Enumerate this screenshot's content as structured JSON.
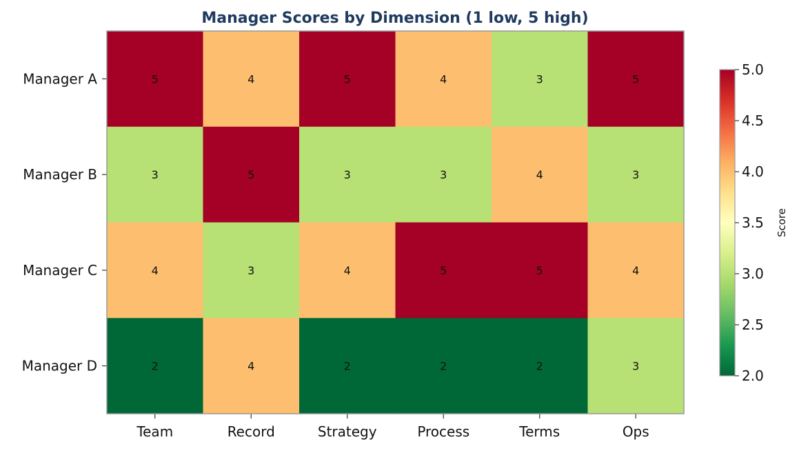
{
  "chart_data": {
    "type": "heatmap",
    "title": "Manager Scores by Dimension (1 low, 5 high)",
    "x_categories": [
      "Team",
      "Record",
      "Strategy",
      "Process",
      "Terms",
      "Ops"
    ],
    "y_categories": [
      "Manager A",
      "Manager B",
      "Manager C",
      "Manager D"
    ],
    "values": [
      [
        5,
        4,
        5,
        4,
        3,
        5
      ],
      [
        3,
        5,
        3,
        3,
        4,
        3
      ],
      [
        4,
        3,
        4,
        5,
        5,
        4
      ],
      [
        2,
        4,
        2,
        2,
        2,
        3
      ]
    ],
    "colorbar": {
      "label": "Score",
      "range": [
        2.0,
        5.0
      ],
      "ticks": [
        "2.0",
        "2.5",
        "3.0",
        "3.5",
        "4.0",
        "4.5",
        "5.0"
      ],
      "colormap": "RdYlGn_r"
    },
    "value_colors": {
      "2": "#006837",
      "3": "#b7e075",
      "4": "#fdbf6f",
      "5": "#a50026"
    },
    "grid": false
  }
}
